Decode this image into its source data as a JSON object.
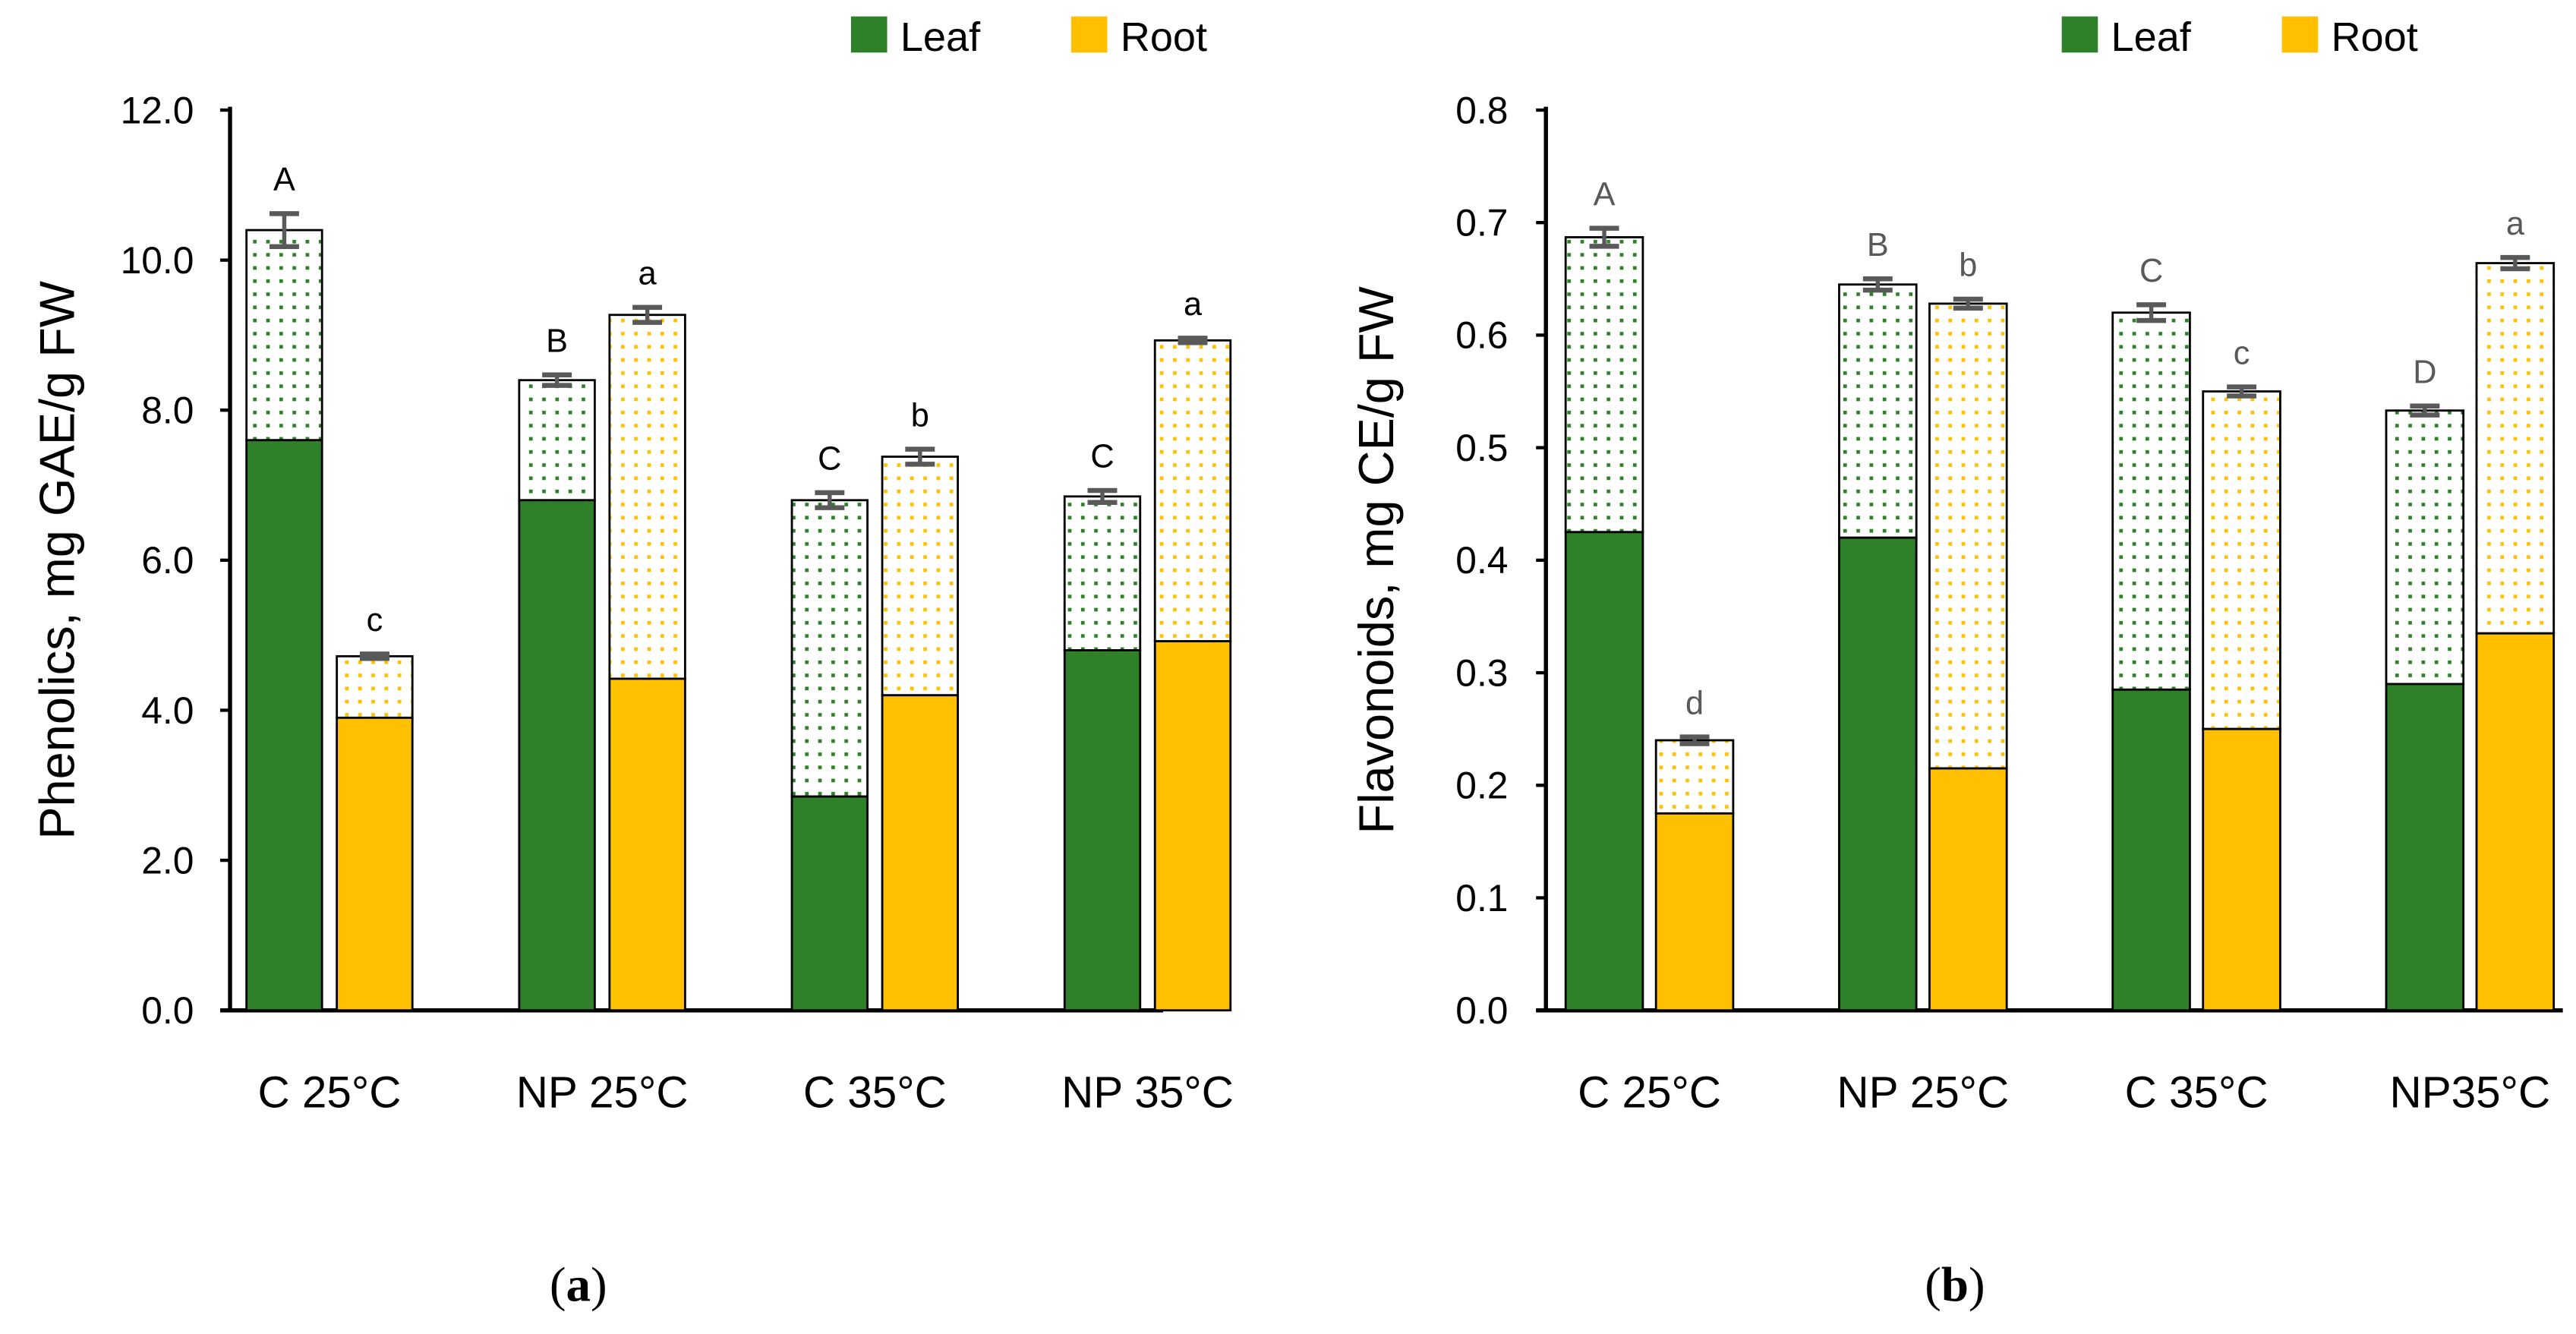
{
  "legend": {
    "leaf": "Leaf",
    "root": "Root"
  },
  "colors": {
    "leaf": "#2e8129",
    "root": "#ffc000",
    "error": "#595959"
  },
  "chart_data": [
    {
      "type": "bar",
      "stacked": true,
      "caption_letter": "a",
      "ylabel": "Phenolics, mg GAE/g FW",
      "ylim": [
        0,
        12
      ],
      "yticks": [
        "0.0",
        "2.0",
        "4.0",
        "6.0",
        "8.0",
        "10.0",
        "12.0"
      ],
      "ytick_values": [
        0,
        2,
        4,
        6,
        8,
        10,
        12
      ],
      "categories": [
        "C 25°C",
        "NP 25°C",
        "C 35°C",
        "NP 35°C"
      ],
      "legend_position": "top-right",
      "series": [
        {
          "name": "Leaf",
          "solid": [
            7.6,
            6.8,
            2.85,
            4.8
          ],
          "total": [
            10.4,
            8.4,
            6.8,
            6.85
          ],
          "error": [
            0.22,
            0.07,
            0.1,
            0.08
          ],
          "letters": [
            "A",
            "B",
            "C",
            "C"
          ]
        },
        {
          "name": "Root",
          "solid": [
            3.9,
            4.42,
            4.2,
            4.92
          ],
          "total": [
            4.72,
            9.27,
            7.38,
            8.93
          ],
          "error": [
            0.03,
            0.1,
            0.1,
            0.03
          ],
          "letters": [
            "c",
            "a",
            "b",
            "a"
          ]
        }
      ],
      "letter_color": "#000000"
    },
    {
      "type": "bar",
      "stacked": true,
      "caption_letter": "b",
      "ylabel": "Flavonoids, mg CE/g FW",
      "ylim": [
        0,
        0.8
      ],
      "yticks": [
        "0.0",
        "0.1",
        "0.2",
        "0.3",
        "0.4",
        "0.5",
        "0.6",
        "0.7",
        "0.8"
      ],
      "ytick_values": [
        0,
        0.1,
        0.2,
        0.3,
        0.4,
        0.5,
        0.6,
        0.7,
        0.8
      ],
      "categories": [
        "C 25°C",
        "NP 25°C",
        "C 35°C",
        "NP35°C"
      ],
      "legend_position": "top-right",
      "series": [
        {
          "name": "Leaf",
          "solid": [
            0.425,
            0.42,
            0.285,
            0.29
          ],
          "total": [
            0.687,
            0.645,
            0.62,
            0.533
          ],
          "error": [
            0.008,
            0.005,
            0.007,
            0.004
          ],
          "letters": [
            "A",
            "B",
            "C",
            "D"
          ]
        },
        {
          "name": "Root",
          "solid": [
            0.175,
            0.215,
            0.25,
            0.335
          ],
          "total": [
            0.24,
            0.628,
            0.55,
            0.664
          ],
          "error": [
            0.003,
            0.004,
            0.004,
            0.005
          ],
          "letters": [
            "d",
            "b",
            "c",
            "a"
          ]
        }
      ],
      "letter_color": "#595959"
    }
  ]
}
